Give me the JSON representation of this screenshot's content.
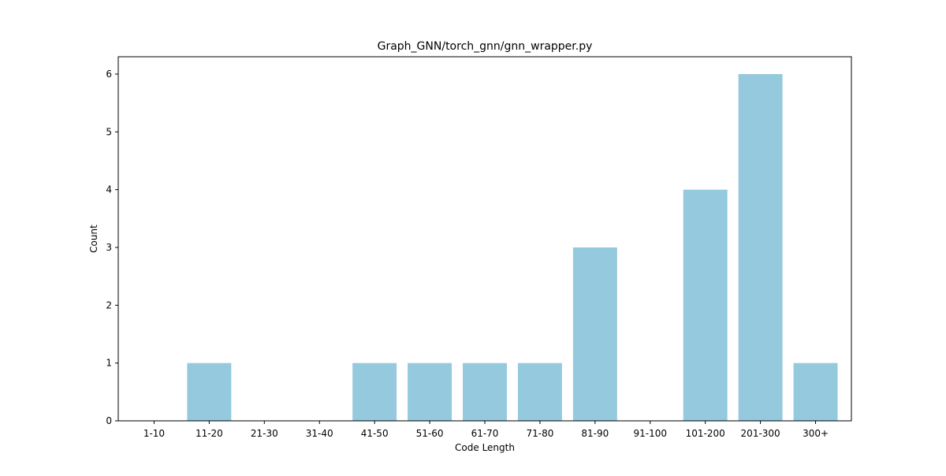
{
  "chart_data": {
    "type": "bar",
    "title": "Graph_GNN/torch_gnn/gnn_wrapper.py",
    "xlabel": "Code Length",
    "ylabel": "Count",
    "categories": [
      "1-10",
      "11-20",
      "21-30",
      "31-40",
      "41-50",
      "51-60",
      "61-70",
      "71-80",
      "81-90",
      "91-100",
      "101-200",
      "201-300",
      "300+"
    ],
    "values": [
      0,
      1,
      0,
      0,
      1,
      1,
      1,
      1,
      3,
      0,
      4,
      6,
      1
    ],
    "ylim": [
      0,
      6.3
    ],
    "yticks": [
      0,
      1,
      2,
      3,
      4,
      5,
      6
    ],
    "bar_color": "#95c9de",
    "grid": false,
    "legend": "none"
  }
}
